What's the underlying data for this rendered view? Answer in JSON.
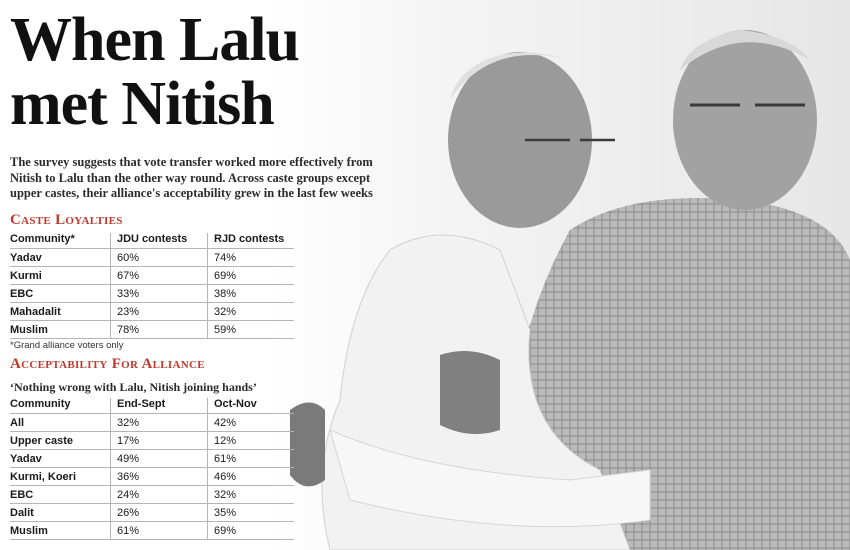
{
  "headline": {
    "line1": "When Lalu",
    "line2": "met Nitish"
  },
  "intro": "The survey suggests that vote transfer worked more effectively from Nitish to Lalu than the other way round. Across caste groups except upper castes, their alliance's acceptability grew in the last few weeks",
  "caste_loyalties": {
    "title": "Caste Loyalties",
    "headers": [
      "Community*",
      "JDU contests",
      "RJD contests"
    ],
    "rows": [
      [
        "Yadav",
        "60%",
        "74%"
      ],
      [
        "Kurmi",
        "67%",
        "69%"
      ],
      [
        "EBC",
        "33%",
        "38%"
      ],
      [
        "Mahadalit",
        "23%",
        "32%"
      ],
      [
        "Muslim",
        "78%",
        "59%"
      ]
    ],
    "footnote": "*Grand alliance voters only"
  },
  "acceptability": {
    "title": "Acceptability For Alliance",
    "subtitle": "‘Nothing wrong with Lalu, Nitish joining hands’",
    "headers": [
      "Community",
      "End-Sept",
      "Oct-Nov"
    ],
    "rows": [
      [
        "All",
        "32%",
        "42%"
      ],
      [
        "Upper caste",
        "17%",
        "12%"
      ],
      [
        "Yadav",
        "49%",
        "61%"
      ],
      [
        "Kurmi, Koeri",
        "36%",
        "46%"
      ],
      [
        "EBC",
        "24%",
        "32%"
      ],
      [
        "Dalit",
        "26%",
        "35%"
      ],
      [
        "Muslim",
        "61%",
        "69%"
      ]
    ]
  },
  "colors": {
    "accent": "#c0392b",
    "text": "#222222"
  },
  "photo": {
    "subject": "two politicians embracing"
  }
}
